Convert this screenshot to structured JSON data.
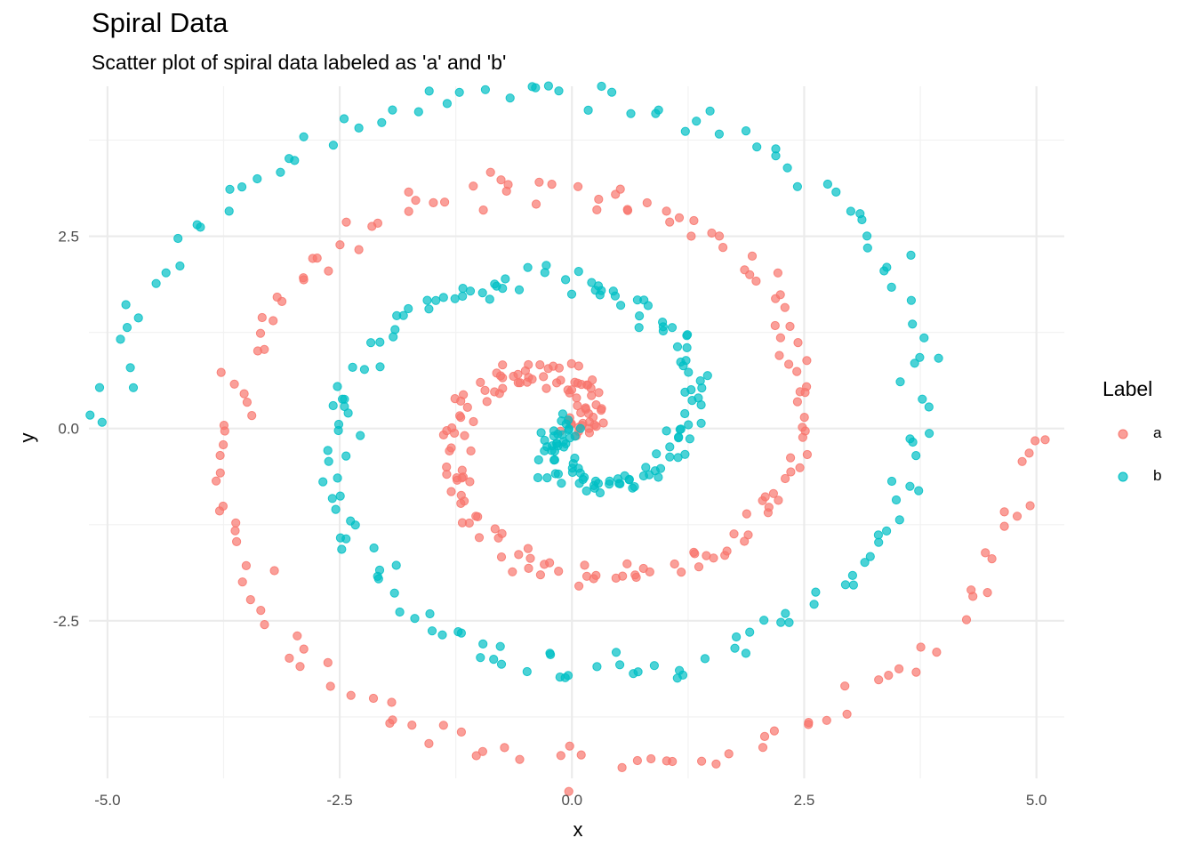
{
  "chart_data": {
    "type": "scatter",
    "title": "Spiral Data",
    "subtitle": "Scatter plot of spiral data labeled as 'a' and 'b'",
    "xlabel": "x",
    "ylabel": "y",
    "xlim": [
      -5.2,
      5.3
    ],
    "ylim": [
      -4.55,
      4.45
    ],
    "x_ticks": [
      -5.0,
      -2.5,
      0.0,
      2.5,
      5.0
    ],
    "x_tick_labels": [
      "-5.0",
      "-2.5",
      "0.0",
      "2.5",
      "5.0"
    ],
    "y_ticks": [
      -2.5,
      0.0,
      2.5
    ],
    "y_tick_labels": [
      "-2.5",
      "0.0",
      "2.5"
    ],
    "grid": true,
    "legend": {
      "title": "Label",
      "placement": "right"
    },
    "series": [
      {
        "name": "a",
        "color": "#F8766D",
        "spiral_direction": 1,
        "r_max": 5.0,
        "turns": 2.0,
        "start_angle_deg": 0,
        "n_points": 300,
        "noise": 0.1
      },
      {
        "name": "b",
        "color": "#00BFC4",
        "spiral_direction": -1,
        "r_max": 5.0,
        "turns": 2.0,
        "start_angle_deg": 0,
        "n_points": 300,
        "noise": 0.1
      }
    ]
  }
}
